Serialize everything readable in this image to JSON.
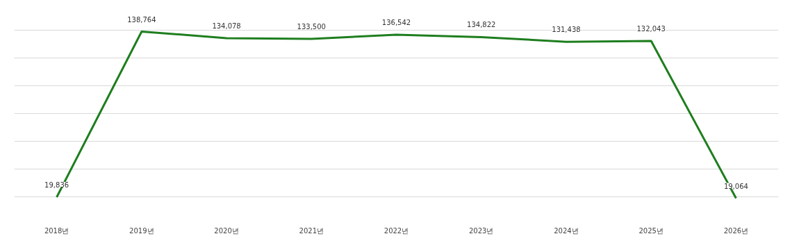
{
  "chart_data": {
    "type": "line",
    "categories": [
      "2018년",
      "2019년",
      "2020년",
      "2021년",
      "2022년",
      "2023년",
      "2024년",
      "2025년",
      "2026년"
    ],
    "series": [
      {
        "color": "#1e7e1e",
        "values": [
          19836,
          138764,
          134078,
          133500,
          136542,
          134822,
          131438,
          132043,
          19064
        ],
        "value_labels": [
          "19,836",
          "138,764",
          "134,078",
          "133,500",
          "136,542",
          "134,822",
          "131,438",
          "132,043",
          "19,064"
        ]
      }
    ],
    "grid": "y",
    "tick_labels": "x",
    "marker": "none",
    "line_style": "solid"
  }
}
